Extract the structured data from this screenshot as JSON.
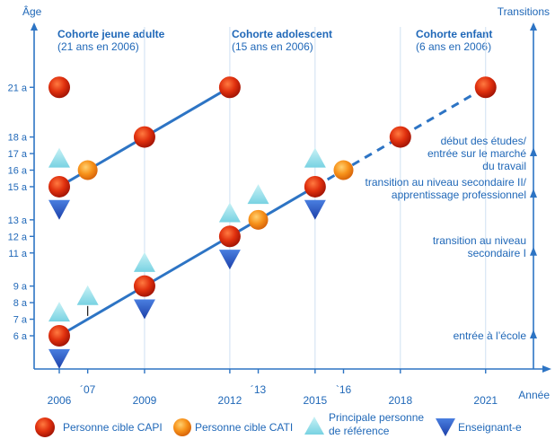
{
  "colors": {
    "axis": "#2d74c4",
    "text_blue": "#2068b8",
    "line": "#2d74c4",
    "grid": "#cfe0f2",
    "capi": "#d62a10",
    "cati": "#f38a12",
    "principal": "#9fe3ee",
    "teacher": "#2357c8"
  },
  "axes": {
    "y_title": "Âge",
    "x_title": "Année",
    "right_title": "Transitions"
  },
  "years": [
    {
      "value": 2006,
      "label": "2006"
    },
    {
      "value": 2007,
      "label": "´07"
    },
    {
      "value": 2009,
      "label": "2009"
    },
    {
      "value": 2012,
      "label": "2012"
    },
    {
      "value": 2013,
      "label": "´13"
    },
    {
      "value": 2015,
      "label": "2015"
    },
    {
      "value": 2016,
      "label": "`16"
    },
    {
      "value": 2018,
      "label": "2018"
    },
    {
      "value": 2021,
      "label": "2021"
    }
  ],
  "ages": [
    {
      "value": 6,
      "label": "6 a"
    },
    {
      "value": 7,
      "label": "7 a"
    },
    {
      "value": 8,
      "label": "8 a"
    },
    {
      "value": 9,
      "label": "9 a"
    },
    {
      "value": 11,
      "label": "11 a"
    },
    {
      "value": 12,
      "label": "12 a"
    },
    {
      "value": 13,
      "label": "13 a"
    },
    {
      "value": 15,
      "label": "15 a"
    },
    {
      "value": 16,
      "label": "16 a"
    },
    {
      "value": 17,
      "label": "17 a"
    },
    {
      "value": 18,
      "label": "18 a"
    },
    {
      "value": 21,
      "label": "21 a"
    }
  ],
  "cohorts": [
    {
      "title": "Cohorte jeune adulte",
      "subtitle": "(21 ans en 2006)"
    },
    {
      "title": "Cohorte adolescent",
      "subtitle": "(15 ans en 2006)"
    },
    {
      "title": "Cohorte enfant",
      "subtitle": "(6 ans en 2006)"
    }
  ],
  "transitions": [
    {
      "age": 6,
      "lines": [
        "entrée à l’école"
      ]
    },
    {
      "age": 11,
      "lines": [
        "transition au niveau",
        "secondaire I"
      ]
    },
    {
      "age": 14.5,
      "lines": [
        "transition au niveau secondaire II/",
        "apprentissage professionnel"
      ]
    },
    {
      "age": 17,
      "lines": [
        "début des études/",
        "entrée sur le marché",
        "du travail"
      ]
    }
  ],
  "lines": [
    {
      "from": [
        2006,
        15
      ],
      "to": [
        2012,
        21
      ],
      "style": "solid"
    },
    {
      "from": [
        2006,
        6
      ],
      "to": [
        2015,
        15
      ],
      "style": "solid"
    },
    {
      "from": [
        2015,
        15
      ],
      "to": [
        2021,
        21
      ],
      "style": "dashed"
    }
  ],
  "markers": {
    "capi": [
      [
        2006,
        21
      ],
      [
        2012,
        21
      ],
      [
        2009,
        18
      ],
      [
        2006,
        15
      ],
      [
        2015,
        15
      ],
      [
        2012,
        12
      ],
      [
        2009,
        9
      ],
      [
        2006,
        6
      ],
      [
        2018,
        18
      ],
      [
        2021,
        21
      ]
    ],
    "cati": [
      [
        2007,
        16
      ],
      [
        2013,
        13
      ],
      [
        2016,
        16
      ]
    ],
    "principal": [
      [
        2006,
        16.7
      ],
      [
        2006,
        7.4
      ],
      [
        2007,
        8.4
      ],
      [
        2009,
        10.4
      ],
      [
        2012,
        13.4
      ],
      [
        2013,
        14.5
      ],
      [
        2015,
        16.7
      ]
    ],
    "teacher": [
      [
        2006,
        13.6
      ],
      [
        2006,
        4.6
      ],
      [
        2009,
        7.6
      ],
      [
        2012,
        10.6
      ],
      [
        2015,
        13.6
      ]
    ]
  },
  "legend": {
    "capi": "Personne cible CAPI",
    "cati": "Personne cible CATI",
    "principal": [
      "Principale personne",
      "de référence"
    ],
    "teacher": "Enseignant-e"
  }
}
